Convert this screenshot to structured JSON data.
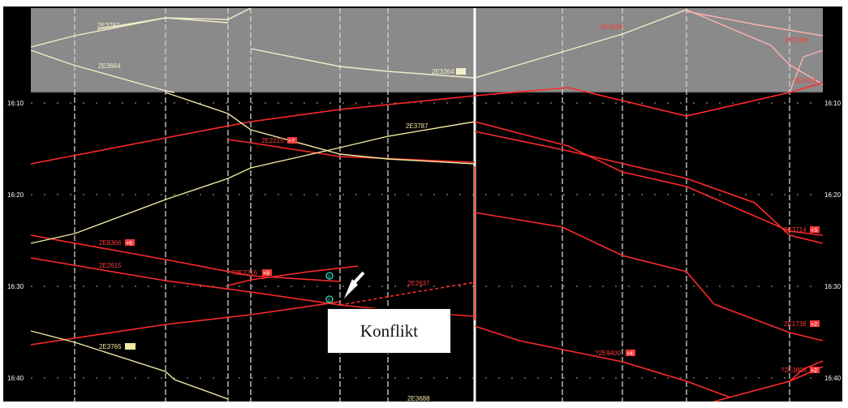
{
  "time_axis": {
    "labels": [
      "16:10",
      "16:20",
      "16:30",
      "16:40"
    ]
  },
  "trains_overview": [
    {
      "label": "2E3787",
      "color": "#f2efc8"
    },
    {
      "label": "2E3664",
      "color": "#f2efc8"
    },
    {
      "label": "2E3264",
      "color": "#f2efc8"
    },
    {
      "label": "2E3639",
      "color": "#ff3a3a"
    },
    {
      "label": "2E1288",
      "color": "#ff3a3a"
    },
    {
      "label": "2E3614",
      "color": "#ff3a3a"
    }
  ],
  "trains_main": [
    {
      "label": "2E3787",
      "color": "#f2e8a0"
    },
    {
      "label": "2E2215",
      "color": "#ff3a3a",
      "badge": "+7"
    },
    {
      "label": "2E8366",
      "color": "#ff3a3a",
      "badge": "+6"
    },
    {
      "label": "2E2615",
      "color": "#ff3a3a"
    },
    {
      "label": "?2E2216",
      "color": "#ff3a3a",
      "badge": "+8"
    },
    {
      "label": "2E2637",
      "color": "#ff3a3a"
    },
    {
      "label": "2E3765",
      "color": "#f2e8a0"
    },
    {
      "label": "?2E9400",
      "color": "#ff3a3a",
      "badge": "+4"
    },
    {
      "label": "2E3688",
      "color": "#f2e8a0"
    },
    {
      "label": "2E3714",
      "color": "#ff3a3a",
      "badge": "+3"
    },
    {
      "label": "2E1738",
      "color": "#ff3a3a",
      "badge": "+2"
    },
    {
      "label": "?2E3808",
      "color": "#ff3a3a",
      "badge": "+2"
    }
  ],
  "markers": {
    "overlap_marker": "0"
  },
  "annotation": {
    "text": "Konflikt"
  },
  "colors": {
    "background": "#000000",
    "overview_band": "#8a8a8a",
    "red_line": "#ff2a2a",
    "yellow_line": "#f2e8a0",
    "grid": "#cfcfcf",
    "marker": "#2fe0c0"
  },
  "icons": [
    "arrow-pointer-icon"
  ]
}
